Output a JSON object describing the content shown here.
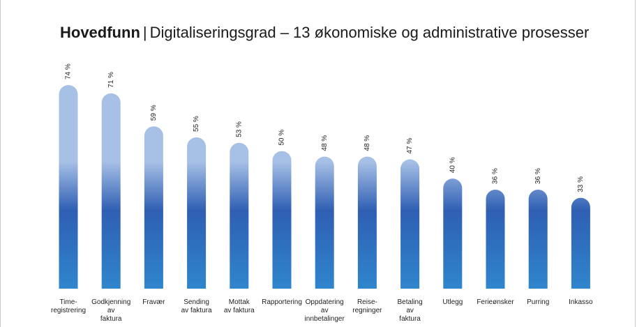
{
  "title": {
    "bold": "Hovedfunn",
    "separator": "|",
    "rest": "Digitaliseringsgrad – 13 økonomiske og administrative prosesser"
  },
  "chart_data": {
    "type": "bar",
    "title": "Hovedfunn | Digitaliseringsgrad – 13 økonomiske og administrative prosesser",
    "categories": [
      [
        "Time-",
        "registrering"
      ],
      [
        "Godkjenning",
        "av",
        "faktura"
      ],
      [
        "Fravær"
      ],
      [
        "Sending",
        "av faktura"
      ],
      [
        "Mottak",
        "av faktura"
      ],
      [
        "Rapportering"
      ],
      [
        "Oppdatering",
        "av",
        "innbetalinger"
      ],
      [
        "Reise-",
        "regninger"
      ],
      [
        "Betaling",
        "av",
        "faktura"
      ],
      [
        "Utlegg"
      ],
      [
        "Ferieønsker"
      ],
      [
        "Purring"
      ],
      [
        "Inkasso"
      ]
    ],
    "values": [
      74,
      71,
      59,
      55,
      53,
      50,
      48,
      48,
      47,
      40,
      36,
      36,
      33
    ],
    "value_labels": [
      "74 %",
      "71 %",
      "59 %",
      "55 %",
      "53 %",
      "50 %",
      "48 %",
      "48 %",
      "47 %",
      "40 %",
      "36 %",
      "36 %",
      "33 %"
    ],
    "unit": "%",
    "ylim": [
      0,
      100
    ],
    "grid": false,
    "colors": {
      "top": "#a7c0e6",
      "middle": "#2f5fb3",
      "bottom": "#2f86cc"
    }
  }
}
